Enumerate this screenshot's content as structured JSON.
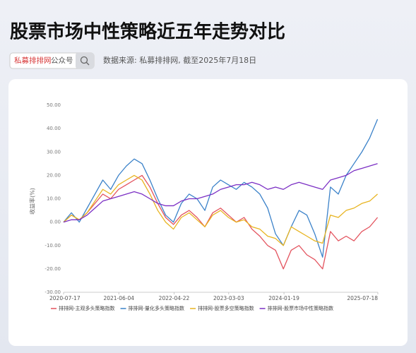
{
  "header": {
    "title": "股票市场中性策略近五年走势对比",
    "search_brand": "私募排排网",
    "search_suffix": "公众号",
    "source": "数据来源: 私募排排网, 截至2025年7月18日"
  },
  "chart_data": {
    "type": "line",
    "y_label": "收益率(%)",
    "x": [
      2020.54,
      2020.665,
      2020.79,
      2020.915,
      2021.04,
      2021.165,
      2021.29,
      2021.415,
      2021.54,
      2021.665,
      2021.79,
      2021.915,
      2022.04,
      2022.165,
      2022.29,
      2022.415,
      2022.54,
      2022.665,
      2022.79,
      2022.915,
      2023.04,
      2023.165,
      2023.29,
      2023.415,
      2023.54,
      2023.665,
      2023.79,
      2023.915,
      2024.04,
      2024.165,
      2024.29,
      2024.415,
      2024.54,
      2024.665,
      2024.79,
      2024.915,
      2025.04,
      2025.165,
      2025.29,
      2025.415,
      2025.54
    ],
    "xlim": [
      2020.54,
      2025.545
    ],
    "xticks": [
      {
        "value": 2020.54,
        "label": "2020-07-17"
      },
      {
        "value": 2021.42,
        "label": "2021-06-04"
      },
      {
        "value": 2022.3,
        "label": "2022-04-22"
      },
      {
        "value": 2023.17,
        "label": "2023-03-03"
      },
      {
        "value": 2024.05,
        "label": "2024-01-19"
      },
      {
        "value": 2025.545,
        "label": "2025-07-18"
      }
    ],
    "ylim": [
      -30,
      50
    ],
    "yticks": [
      {
        "value": -30,
        "label": "-30.00"
      },
      {
        "value": -20,
        "label": "-20.00"
      },
      {
        "value": -10,
        "label": "-10.00"
      },
      {
        "value": 0,
        "label": "0.00"
      },
      {
        "value": 10,
        "label": "10.00"
      },
      {
        "value": 20,
        "label": "20.00"
      },
      {
        "value": 30,
        "label": "30.00"
      },
      {
        "value": 40,
        "label": "40.00"
      },
      {
        "value": 50,
        "label": "50.00"
      }
    ],
    "grid": false,
    "legend": "bottom",
    "series": [
      {
        "name": "排排网-主观多头策略指数",
        "color": "#e3525d",
        "values": [
          0,
          3,
          1,
          4,
          8,
          12,
          10,
          14,
          16,
          18,
          20,
          15,
          8,
          2,
          -1,
          3,
          5,
          2,
          -2,
          4,
          6,
          3,
          0,
          2,
          -3,
          -6,
          -10,
          -12,
          -20,
          -12,
          -10,
          -14,
          -16,
          -20,
          -4,
          -8,
          -6,
          -8,
          -4,
          -2,
          2
        ]
      },
      {
        "name": "排排网-量化多头策略指数",
        "color": "#3b82c9",
        "values": [
          0,
          4,
          0,
          6,
          12,
          18,
          14,
          20,
          24,
          27,
          25,
          18,
          10,
          3,
          0,
          8,
          12,
          10,
          5,
          15,
          18,
          16,
          14,
          17,
          15,
          12,
          6,
          -5,
          -10,
          -2,
          5,
          3,
          -5,
          -15,
          15,
          12,
          20,
          25,
          30,
          36,
          44
        ]
      },
      {
        "name": "排排网-股票多空策略指数",
        "color": "#e8b420",
        "values": [
          0,
          3,
          1,
          4,
          9,
          14,
          12,
          16,
          18,
          20,
          18,
          12,
          5,
          0,
          -3,
          2,
          4,
          1,
          -2,
          3,
          5,
          2,
          0,
          1,
          -2,
          -3,
          -6,
          -7,
          -10,
          -2,
          -4,
          -6,
          -8,
          -9,
          3,
          2,
          5,
          6,
          8,
          9,
          12
        ]
      },
      {
        "name": "排排网-股票市场中性策略指数",
        "color": "#7b2fc4",
        "values": [
          0,
          1,
          1,
          3,
          6,
          9,
          10,
          11,
          12,
          13,
          12,
          10,
          8,
          7,
          7,
          9,
          10,
          10,
          11,
          12,
          14,
          15,
          16,
          16,
          17,
          16,
          14,
          15,
          14,
          16,
          17,
          16,
          15,
          14,
          18,
          19,
          20,
          22,
          23,
          24,
          25
        ]
      }
    ]
  }
}
